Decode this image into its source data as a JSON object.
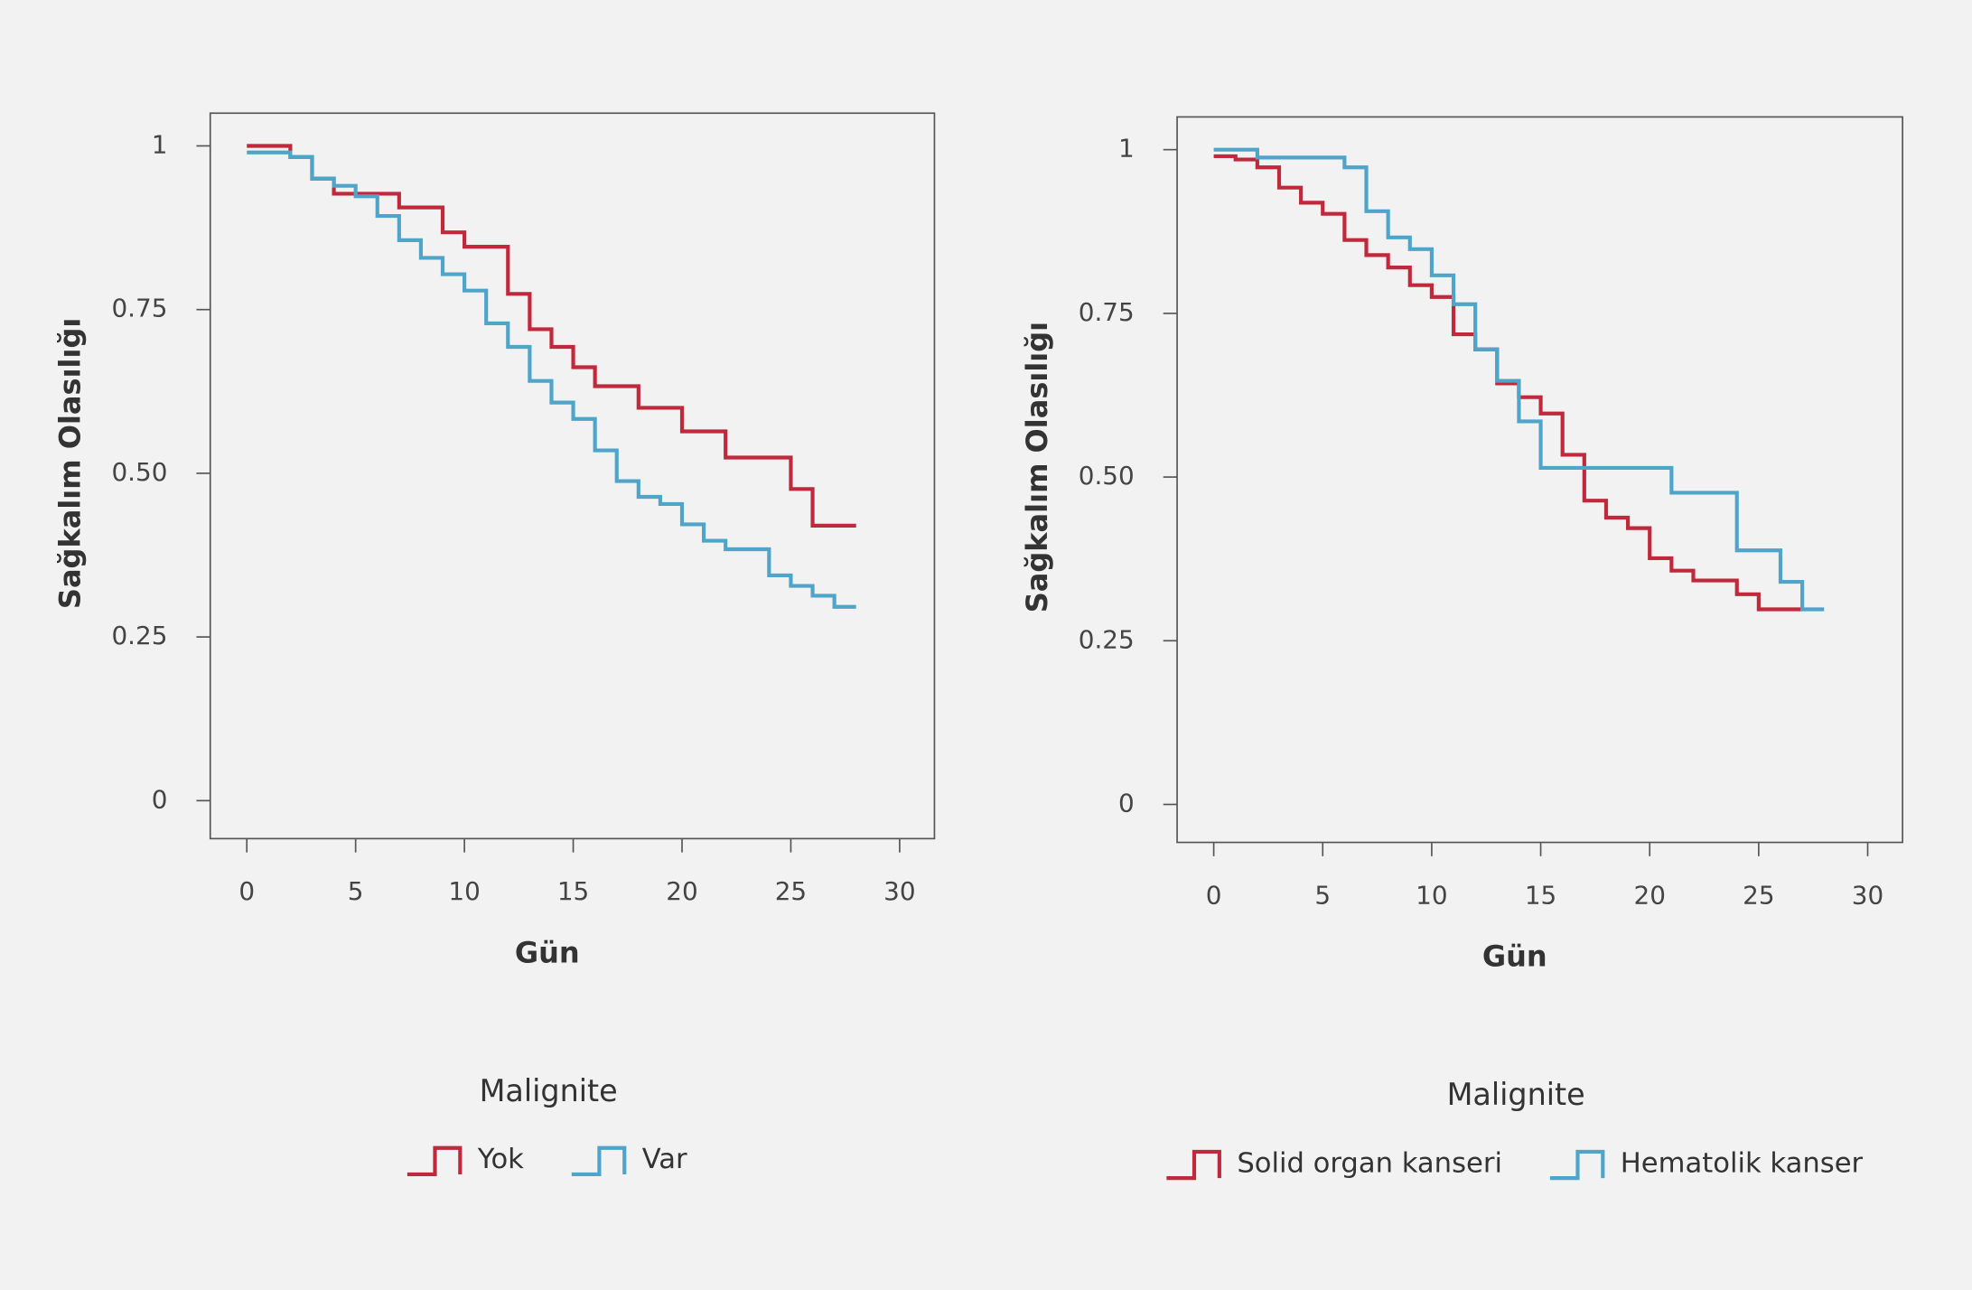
{
  "chart_data": [
    {
      "type": "step",
      "x_label": "Gün",
      "y_label": "Sağkalım Olasılığı",
      "legend_title": "Malignite",
      "xlim": [
        -1.68,
        31.6
      ],
      "ylim": [
        -0.058,
        1.05
      ],
      "xticks": [
        0,
        5,
        10,
        15,
        20,
        25,
        30
      ],
      "yticks": [
        0,
        0.25,
        {
          "value": 0.5,
          "label": "0.50"
        },
        0.75,
        1
      ],
      "series": [
        {
          "name": "Yok",
          "color": "#c0283c",
          "x": [
            0,
            2,
            3,
            4,
            7,
            9,
            10,
            12,
            13,
            14,
            15,
            16,
            18,
            20,
            22,
            25,
            26,
            28
          ],
          "values": [
            1.0,
            0.983,
            0.95,
            0.927,
            0.906,
            0.868,
            0.846,
            0.774,
            0.72,
            0.693,
            0.662,
            0.633,
            0.6,
            0.564,
            0.524,
            0.476,
            0.42,
            0.42
          ]
        },
        {
          "name": "Var",
          "color": "#4ea5c9",
          "x": [
            0,
            2,
            3,
            4,
            5,
            6,
            7,
            8,
            9,
            10,
            11,
            12,
            13,
            14,
            15,
            16,
            17,
            18,
            19,
            20,
            21,
            22,
            24,
            25,
            26,
            27,
            28
          ],
          "values": [
            0.99,
            0.983,
            0.95,
            0.939,
            0.923,
            0.893,
            0.856,
            0.829,
            0.804,
            0.779,
            0.729,
            0.693,
            0.641,
            0.608,
            0.583,
            0.535,
            0.488,
            0.464,
            0.453,
            0.422,
            0.397,
            0.384,
            0.344,
            0.328,
            0.313,
            0.296,
            0.296
          ]
        }
      ]
    },
    {
      "type": "step",
      "x_label": "Gün",
      "y_label": "Sağkalım Olasılığı",
      "legend_title": "Malignite",
      "xlim": [
        -1.68,
        31.6
      ],
      "ylim": [
        -0.058,
        1.05
      ],
      "xticks": [
        0,
        5,
        10,
        15,
        20,
        25,
        30
      ],
      "yticks": [
        0,
        0.25,
        {
          "value": 0.5,
          "label": "0.50"
        },
        0.75,
        1
      ],
      "series": [
        {
          "name": "Solid organ kanseri",
          "color": "#c0283c",
          "x": [
            0,
            1,
            2,
            3,
            4,
            5,
            6,
            7,
            8,
            9,
            10,
            11,
            12,
            13,
            14,
            15,
            16,
            17,
            18,
            19,
            20,
            21,
            22,
            24,
            25,
            27
          ],
          "values": [
            0.99,
            0.985,
            0.973,
            0.942,
            0.919,
            0.902,
            0.862,
            0.839,
            0.82,
            0.793,
            0.775,
            0.718,
            0.695,
            0.643,
            0.622,
            0.597,
            0.534,
            0.464,
            0.438,
            0.422,
            0.376,
            0.357,
            0.342,
            0.321,
            0.298,
            0.298
          ]
        },
        {
          "name": "Hematolik kanser",
          "color": "#4ea5c9",
          "x": [
            0,
            2,
            6,
            7,
            8,
            9,
            10,
            11,
            12,
            13,
            14,
            15,
            21,
            24,
            26,
            27,
            28
          ],
          "values": [
            1.0,
            0.988,
            0.973,
            0.906,
            0.866,
            0.848,
            0.808,
            0.764,
            0.695,
            0.647,
            0.585,
            0.514,
            0.476,
            0.388,
            0.34,
            0.298,
            0.298
          ]
        }
      ]
    }
  ]
}
